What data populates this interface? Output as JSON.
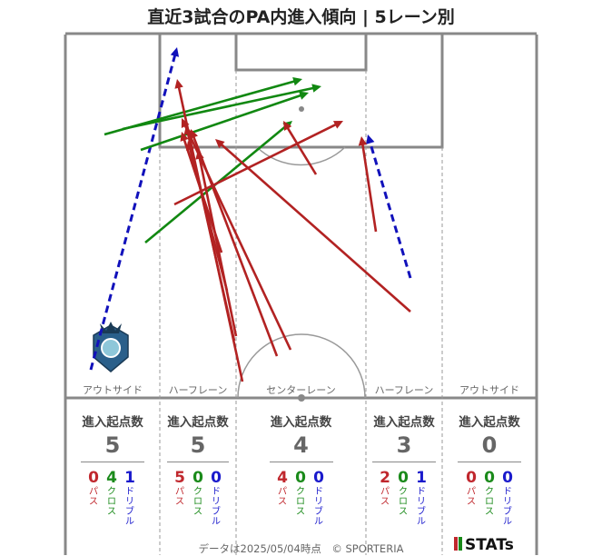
{
  "title": "直近3試合のPA内進入傾向 | 5レーン別",
  "lanes": [
    {
      "name": "アウトサイド",
      "heading": "進入起点数",
      "total": "5",
      "pass": "0",
      "cross": "4",
      "dribble": "1"
    },
    {
      "name": "ハーフレーン",
      "heading": "進入起点数",
      "total": "5",
      "pass": "5",
      "cross": "0",
      "dribble": "0"
    },
    {
      "name": "センターレーン",
      "heading": "進入起点数",
      "total": "4",
      "pass": "4",
      "cross": "0",
      "dribble": "0"
    },
    {
      "name": "ハーフレーン",
      "heading": "進入起点数",
      "total": "3",
      "pass": "2",
      "cross": "0",
      "dribble": "1"
    },
    {
      "name": "アウトサイド",
      "heading": "進入起点数",
      "total": "0",
      "pass": "0",
      "cross": "0",
      "dribble": "0"
    }
  ],
  "labels": {
    "pass": "パス",
    "cross": "クロス",
    "dribble": "ドリブル"
  },
  "footer": "データは2025/05/04時点　© SPORTERIA",
  "brand": "STATs",
  "colors": {
    "pass": "#b22222",
    "cross": "#118811",
    "dribble": "#1111bb"
  },
  "chart_data": {
    "type": "arrow-map",
    "arrows": [
      {
        "kind": "dribble",
        "from": [
          100,
          407
        ],
        "to": [
          195,
          52
        ]
      },
      {
        "kind": "dribble",
        "from": [
          452,
          306
        ],
        "to": [
          405,
          148
        ]
      },
      {
        "kind": "cross",
        "from": [
          115,
          148
        ],
        "to": [
          333,
          87
        ]
      },
      {
        "kind": "cross",
        "from": [
          135,
          142
        ],
        "to": [
          354,
          95
        ]
      },
      {
        "kind": "cross",
        "from": [
          155,
          165
        ],
        "to": [
          340,
          102
        ]
      },
      {
        "kind": "cross",
        "from": [
          160,
          267
        ],
        "to": [
          322,
          133
        ]
      },
      {
        "kind": "pass",
        "from": [
          267,
          420
        ],
        "to": [
          195,
          87
        ]
      },
      {
        "kind": "pass",
        "from": [
          258,
          375
        ],
        "to": [
          205,
          138
        ]
      },
      {
        "kind": "pass",
        "from": [
          320,
          385
        ],
        "to": [
          200,
          130
        ]
      },
      {
        "kind": "pass",
        "from": [
          305,
          392
        ],
        "to": [
          210,
          142
        ]
      },
      {
        "kind": "pass",
        "from": [
          244,
          278
        ],
        "to": [
          200,
          145
        ]
      },
      {
        "kind": "pass",
        "from": [
          452,
          343
        ],
        "to": [
          237,
          153
        ]
      },
      {
        "kind": "pass",
        "from": [
          192,
          225
        ],
        "to": [
          378,
          133
        ]
      },
      {
        "kind": "pass",
        "from": [
          348,
          192
        ],
        "to": [
          312,
          133
        ]
      },
      {
        "kind": "pass",
        "from": [
          414,
          255
        ],
        "to": [
          398,
          150
        ]
      },
      {
        "kind": "pass",
        "from": [
          250,
          320
        ],
        "to": [
          207,
          155
        ]
      },
      {
        "kind": "pass",
        "from": [
          260,
          370
        ],
        "to": [
          218,
          165
        ]
      }
    ]
  }
}
